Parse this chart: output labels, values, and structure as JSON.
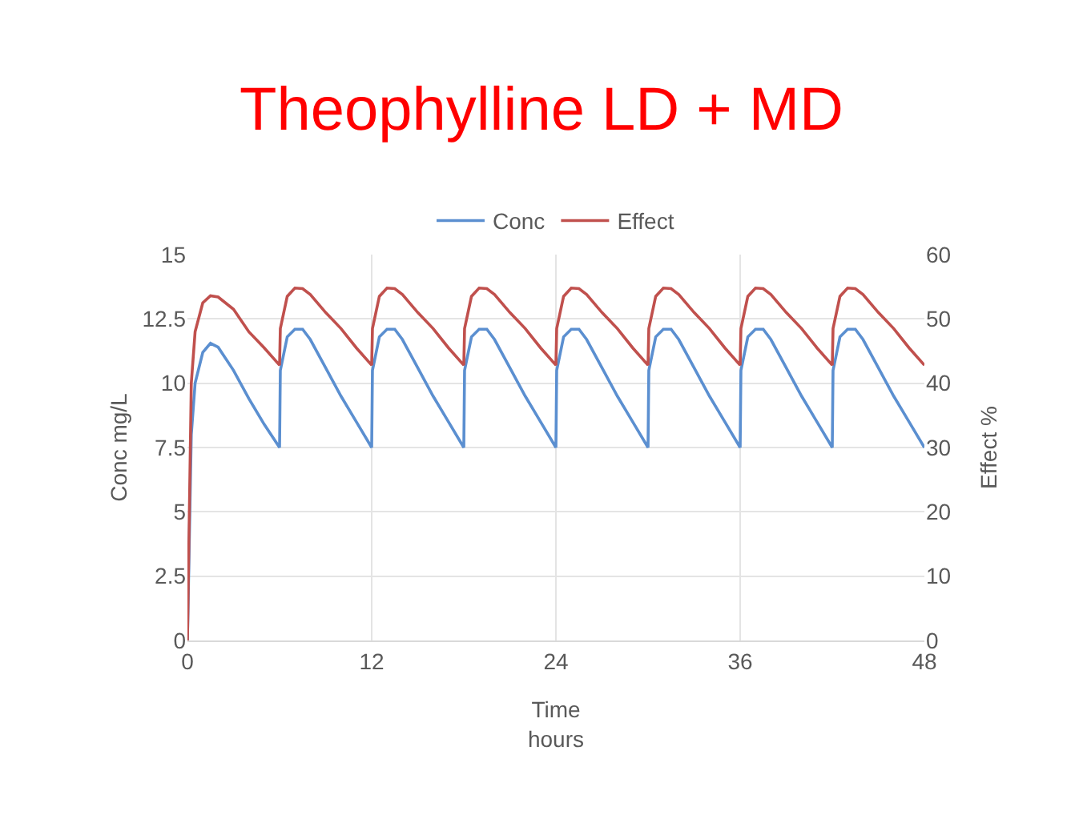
{
  "chart_data": {
    "type": "line",
    "title": "Theophylline LD + MD",
    "xlabel": "Time\nhours",
    "ylabel": "Conc mg/L",
    "y2label": "Effect %",
    "x": [
      0,
      0.25,
      0.5,
      1,
      1.5,
      2,
      3,
      4,
      5,
      6,
      6.05,
      6.5,
      7,
      7.5,
      8,
      9,
      10,
      11,
      12,
      12.05,
      12.5,
      13,
      13.5,
      14,
      15,
      16,
      17,
      18,
      18.05,
      18.5,
      19,
      19.5,
      20,
      21,
      22,
      23,
      24,
      24.05,
      24.5,
      25,
      25.5,
      26,
      27,
      28,
      29,
      30,
      30.05,
      30.5,
      31,
      31.5,
      32,
      33,
      34,
      35,
      36,
      36.05,
      36.5,
      37,
      37.5,
      38,
      39,
      40,
      41,
      42,
      42.05,
      42.5,
      43,
      43.5,
      44,
      45,
      46,
      47,
      48
    ],
    "series": [
      {
        "name": "Conc",
        "color": "#5b8fd0",
        "values": [
          0,
          8,
          10,
          11.2,
          11.55,
          11.4,
          10.5,
          9.4,
          8.4,
          7.5,
          10.5,
          11.8,
          12.1,
          12.1,
          11.7,
          10.6,
          9.5,
          8.5,
          7.5,
          10.5,
          11.8,
          12.1,
          12.1,
          11.7,
          10.6,
          9.5,
          8.5,
          7.5,
          10.5,
          11.8,
          12.1,
          12.1,
          11.7,
          10.6,
          9.5,
          8.5,
          7.5,
          10.5,
          11.8,
          12.1,
          12.1,
          11.7,
          10.6,
          9.5,
          8.5,
          7.5,
          10.5,
          11.8,
          12.1,
          12.1,
          11.7,
          10.6,
          9.5,
          8.5,
          7.5,
          10.5,
          11.8,
          12.1,
          12.1,
          11.7,
          10.6,
          9.5,
          8.5,
          7.5,
          10.5,
          11.8,
          12.1,
          12.1,
          11.7,
          10.6,
          9.5,
          8.5,
          7.5
        ]
      },
      {
        "name": "Effect",
        "color": "#c0504d",
        "axis": "y2",
        "values": [
          0,
          40,
          48,
          52.5,
          53.6,
          53.4,
          51.5,
          48,
          45.5,
          42.8,
          48.5,
          53.5,
          54.8,
          54.7,
          53.8,
          51,
          48.5,
          45.5,
          42.8,
          48.5,
          53.5,
          54.8,
          54.7,
          53.8,
          51,
          48.5,
          45.5,
          42.8,
          48.5,
          53.5,
          54.8,
          54.7,
          53.8,
          51,
          48.5,
          45.5,
          42.8,
          48.5,
          53.5,
          54.8,
          54.7,
          53.8,
          51,
          48.5,
          45.5,
          42.8,
          48.5,
          53.5,
          54.8,
          54.7,
          53.8,
          51,
          48.5,
          45.5,
          42.8,
          48.5,
          53.5,
          54.8,
          54.7,
          53.8,
          51,
          48.5,
          45.5,
          42.8,
          48.5,
          53.5,
          54.8,
          54.7,
          53.8,
          51,
          48.5,
          45.5,
          42.8
        ]
      }
    ],
    "xlim": [
      0,
      48
    ],
    "xticks": [
      0,
      12,
      24,
      36,
      48
    ],
    "ylim": [
      0,
      15
    ],
    "yticks": [
      0,
      2.5,
      5,
      7.5,
      10,
      12.5,
      15
    ],
    "y2lim": [
      0,
      60
    ],
    "y2ticks": [
      0,
      10,
      20,
      30,
      40,
      50,
      60
    ],
    "grid": true,
    "legend": "top",
    "marker": "none",
    "line_style": "solid"
  }
}
